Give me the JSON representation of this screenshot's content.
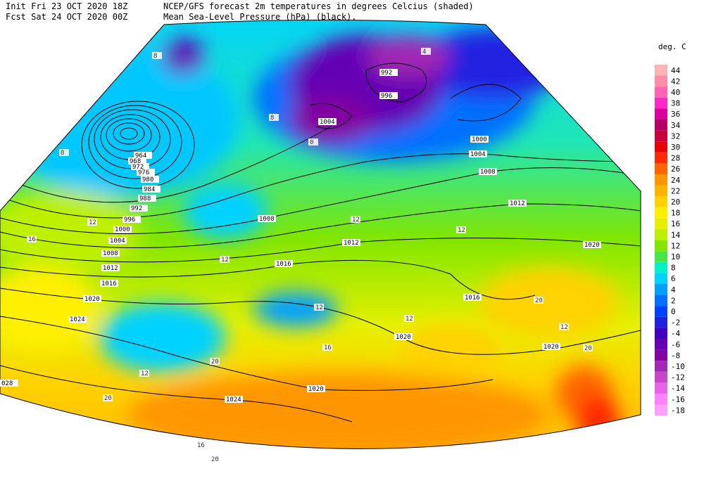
{
  "header": {
    "init": "Init  Fri 23 OCT 2020 18Z",
    "fcst": "Fcst Sat 24 OCT 2020 00Z",
    "line1": "NCEP/GFS forecast 2m temperatures in degrees Celcius (shaded)",
    "line2": "Mean Sea-Level Pressure (hPa) (black)."
  },
  "colorbar": {
    "title": "deg. C",
    "levels": [
      {
        "label": "44",
        "color": "#ffb4b4"
      },
      {
        "label": "42",
        "color": "#ff8caa"
      },
      {
        "label": "40",
        "color": "#ff64b4"
      },
      {
        "label": "38",
        "color": "#ff28c8"
      },
      {
        "label": "36",
        "color": "#dc00a0"
      },
      {
        "label": "34",
        "color": "#b40064"
      },
      {
        "label": "32",
        "color": "#c8003c"
      },
      {
        "label": "30",
        "color": "#e60000"
      },
      {
        "label": "28",
        "color": "#ff2800"
      },
      {
        "label": "26",
        "color": "#ff6400"
      },
      {
        "label": "24",
        "color": "#ff9600"
      },
      {
        "label": "22",
        "color": "#ffb400"
      },
      {
        "label": "20",
        "color": "#ffd200"
      },
      {
        "label": "18",
        "color": "#fff000"
      },
      {
        "label": "16",
        "color": "#e6f000"
      },
      {
        "label": "14",
        "color": "#bef000"
      },
      {
        "label": "12",
        "color": "#82e600"
      },
      {
        "label": "10",
        "color": "#46e646"
      },
      {
        "label": "8",
        "color": "#00f0c8"
      },
      {
        "label": "6",
        "color": "#00d2ff"
      },
      {
        "label": "4",
        "color": "#00a0ff"
      },
      {
        "label": "2",
        "color": "#0070ff"
      },
      {
        "label": "0",
        "color": "#0040ff"
      },
      {
        "label": "-2",
        "color": "#2020e0"
      },
      {
        "label": "-4",
        "color": "#4000c0"
      },
      {
        "label": "-6",
        "color": "#6400b4"
      },
      {
        "label": "-8",
        "color": "#8200a0"
      },
      {
        "label": "-10",
        "color": "#a028b4"
      },
      {
        "label": "-12",
        "color": "#c846c8"
      },
      {
        "label": "-14",
        "color": "#e664e6"
      },
      {
        "label": "-16",
        "color": "#ff82ff"
      },
      {
        "label": "-18",
        "color": "#ffa0ff"
      }
    ]
  },
  "isobar_labels": [
    "964",
    "968",
    "972",
    "976",
    "980",
    "984",
    "988",
    "992",
    "996",
    "1000",
    "1004",
    "1008",
    "1012",
    "1016",
    "1020",
    "1024",
    "992",
    "996",
    "1004",
    "1000",
    "1004",
    "1008",
    "1012",
    "1008",
    "1012",
    "1016",
    "1020",
    "1016",
    "1020",
    "1020",
    "1020",
    "1024",
    "028"
  ],
  "temperature_labels": [
    "12",
    "16",
    "8",
    "8",
    "12",
    "12",
    "12",
    "12",
    "12",
    "20",
    "20",
    "16",
    "20",
    "12",
    "20",
    "16",
    "20",
    "8",
    "4",
    "0",
    "12"
  ]
}
